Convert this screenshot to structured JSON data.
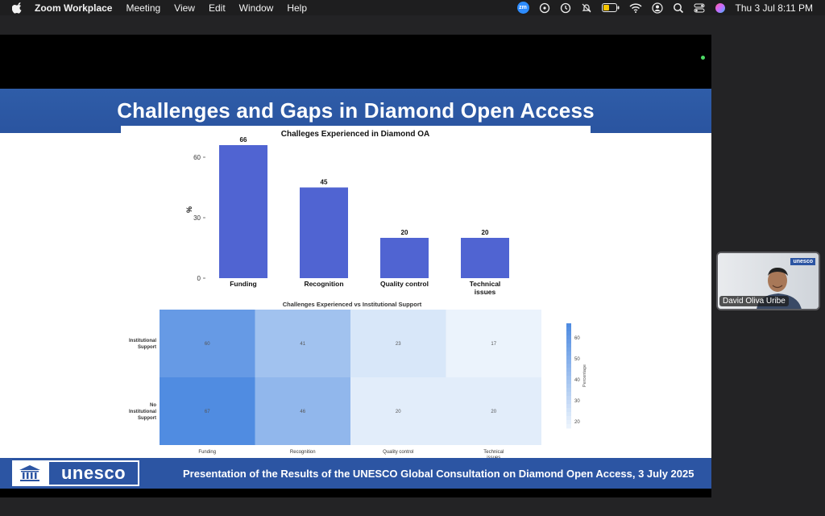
{
  "menubar": {
    "app_name": "Zoom Workplace",
    "items": [
      "Meeting",
      "View",
      "Edit",
      "Window",
      "Help"
    ],
    "clock": "Thu 3 Jul  8:11 PM",
    "zoom_badge": "zm"
  },
  "slide": {
    "title": "Challenges and Gaps in Diamond Open Access",
    "footer_text": "Presentation of the Results of the UNESCO Global Consultation on Diamond Open Access, 3 July 2025",
    "logo_text": "unesco"
  },
  "participant": {
    "name": "David Oliva Uribe",
    "badge": "unesco"
  },
  "chart_data": [
    {
      "type": "bar",
      "title": "Challeges Experienced in Diamond OA",
      "categories": [
        "Funding",
        "Recognition",
        "Quality control",
        "Technical issues"
      ],
      "values": [
        66,
        45,
        20,
        20
      ],
      "ylabel": "%",
      "yticks": [
        0,
        30,
        60
      ],
      "ylim": [
        0,
        70
      ],
      "color": "#5064d2"
    },
    {
      "type": "heatmap",
      "title": "Challenges Experienced vs Institutional Support",
      "rows": [
        "Institutional Support",
        "No Institutional Support"
      ],
      "columns": [
        "Funding",
        "Recognition",
        "Quality control",
        "Technical issues"
      ],
      "values": [
        [
          60,
          41,
          23,
          17
        ],
        [
          67,
          46,
          20,
          20
        ]
      ],
      "colorbar_label": "Percentage",
      "colorbar_ticks": [
        20,
        30,
        40,
        50,
        60
      ],
      "range": [
        17,
        67
      ]
    }
  ]
}
